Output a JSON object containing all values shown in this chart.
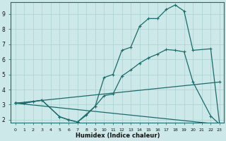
{
  "bg_color": "#cce8e8",
  "grid_color": "#aad0d0",
  "line_color": "#1a6b6b",
  "xlabel": "Humidex (Indice chaleur)",
  "xlim": [
    -0.5,
    23.5
  ],
  "ylim": [
    1.8,
    9.8
  ],
  "xticks": [
    0,
    1,
    2,
    3,
    4,
    5,
    6,
    7,
    8,
    9,
    10,
    11,
    12,
    13,
    14,
    15,
    16,
    17,
    18,
    19,
    20,
    21,
    22,
    23
  ],
  "yticks": [
    2,
    3,
    4,
    5,
    6,
    7,
    8,
    9
  ],
  "line1_x": [
    0,
    1,
    2,
    3,
    5,
    6,
    7,
    9,
    10,
    11,
    12,
    13,
    14,
    15,
    16,
    17,
    18,
    19,
    20,
    22,
    23
  ],
  "line1_y": [
    3.1,
    3.1,
    3.2,
    3.3,
    2.2,
    2.0,
    1.85,
    2.9,
    4.8,
    5.0,
    6.6,
    6.8,
    8.2,
    8.7,
    8.7,
    9.3,
    9.6,
    9.2,
    6.6,
    6.7,
    1.7
  ],
  "line2_x": [
    0,
    1,
    2,
    3,
    5,
    6,
    7,
    8,
    9,
    10,
    11,
    12,
    13,
    14,
    15,
    16,
    17,
    18,
    19,
    20,
    22,
    23
  ],
  "line2_y": [
    3.1,
    3.1,
    3.2,
    3.3,
    2.2,
    2.0,
    1.85,
    2.3,
    2.9,
    3.6,
    3.7,
    4.9,
    5.3,
    5.75,
    6.1,
    6.35,
    6.65,
    6.6,
    6.5,
    4.5,
    2.25,
    1.7
  ],
  "line3_x": [
    0,
    23
  ],
  "line3_y": [
    3.1,
    4.5
  ],
  "line4_x": [
    0,
    23
  ],
  "line4_y": [
    3.1,
    1.7
  ]
}
